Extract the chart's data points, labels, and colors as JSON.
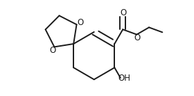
{
  "bg_color": "#ffffff",
  "line_color": "#1a1a1a",
  "line_width": 1.4,
  "font_size": 8.5,
  "figsize": [
    2.8,
    1.38
  ],
  "dpi": 100,
  "xlim": [
    -0.3,
    2.1
  ],
  "ylim": [
    -0.75,
    0.85
  ]
}
